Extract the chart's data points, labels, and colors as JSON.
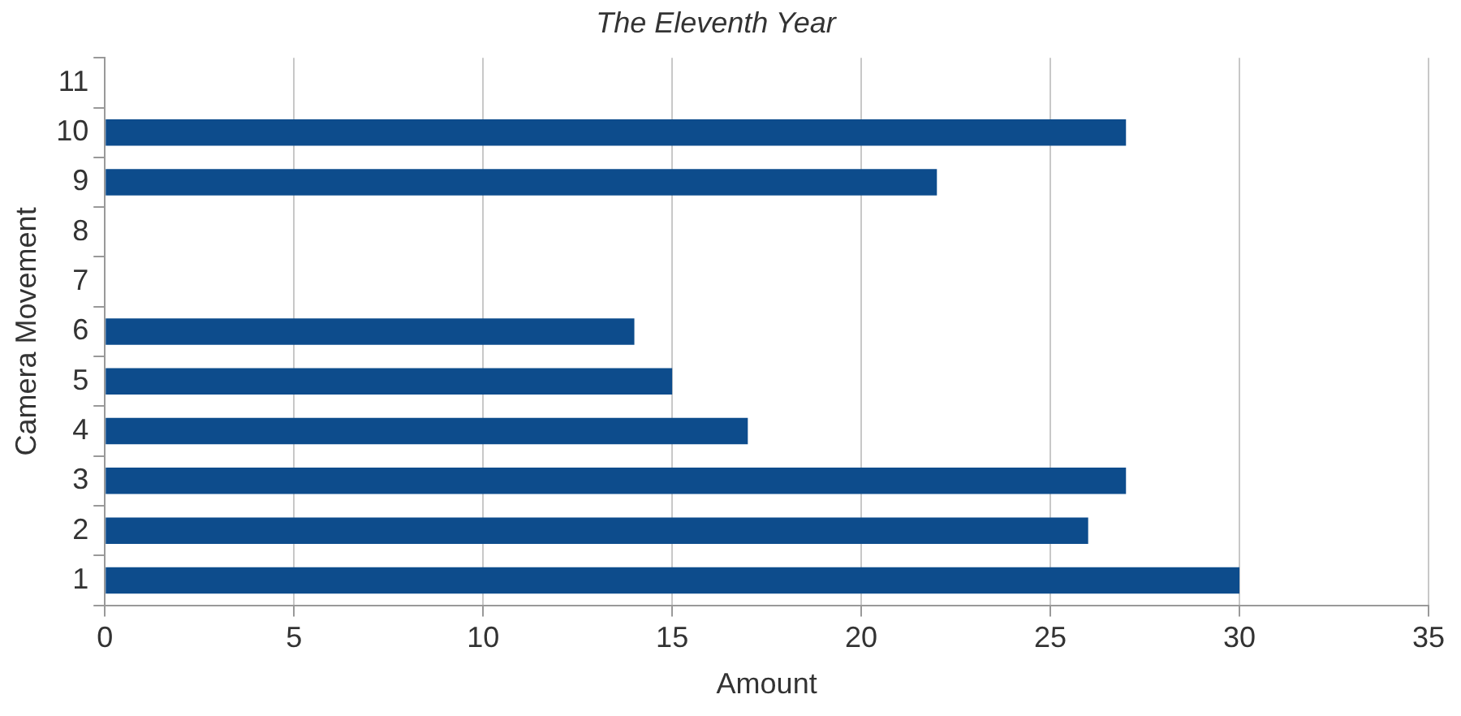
{
  "chart_data": {
    "type": "bar",
    "orientation": "horizontal",
    "title": "The Eleventh Year",
    "xlabel": "Amount",
    "ylabel": "Camera Movement",
    "categories": [
      "11",
      "10",
      "9",
      "8",
      "7",
      "6",
      "5",
      "4",
      "3",
      "2",
      "1"
    ],
    "values": [
      0,
      27,
      22,
      0,
      0,
      14,
      15,
      17,
      27,
      26,
      30
    ],
    "color": "#0d4c8c",
    "xlim": [
      0,
      35
    ],
    "xticks": [
      0,
      5,
      10,
      15,
      20,
      25,
      30,
      35
    ],
    "grid": "x",
    "legend": false
  }
}
